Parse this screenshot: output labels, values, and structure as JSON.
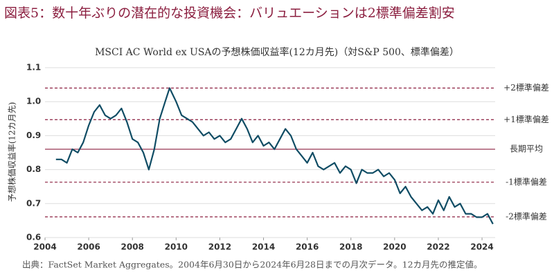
{
  "chart_data": {
    "type": "line",
    "title": "図表5：数十年ぶりの潜在的な投資機会：バリュエーションは2標準偏差割安",
    "subtitle": "MSCI AC World ex USAの予想株価収益率(12カ月先)（対S&P 500、標準偏差）",
    "y_label": "予想株価収益率(12カ月先)",
    "source": "出典：FactSet Market Aggregates。2004年6月30日から2024年6月28日までの月次データ。12カ月先の推定値。",
    "xlim": [
      2004,
      2024.6
    ],
    "xticks": [
      2004,
      2006,
      2008,
      2010,
      2012,
      2014,
      2016,
      2018,
      2020,
      2022,
      2024
    ],
    "ylim": [
      0.6,
      1.1
    ],
    "yticks": [
      0.6,
      0.7,
      0.8,
      0.9,
      {
        "value": 1,
        "label": "1.0"
      },
      1.1
    ],
    "grid": true,
    "reference_lines": [
      {
        "label": "+2標準偏差",
        "value": 1.04,
        "style": "dashed"
      },
      {
        "label": "+1標準偏差",
        "value": 0.947,
        "style": "dashed"
      },
      {
        "label": "長期平均",
        "value": 0.86,
        "style": "solid"
      },
      {
        "label": "-1標準偏差",
        "value": 0.763,
        "style": "dashed"
      },
      {
        "label": "-2標準偏差",
        "value": 0.661,
        "style": "dashed"
      }
    ],
    "reference_color": "#8b1e3f",
    "x": [
      2004.5,
      2004.75,
      2005,
      2005.25,
      2005.5,
      2005.75,
      2006,
      2006.25,
      2006.5,
      2006.75,
      2007,
      2007.25,
      2007.5,
      2007.75,
      2008,
      2008.25,
      2008.5,
      2008.75,
      2009,
      2009.25,
      2009.5,
      2009.7,
      2010,
      2010.25,
      2010.5,
      2010.75,
      2011,
      2011.25,
      2011.5,
      2011.75,
      2012,
      2012.25,
      2012.5,
      2012.75,
      2013,
      2013.25,
      2013.5,
      2013.75,
      2014,
      2014.25,
      2014.5,
      2014.75,
      2015,
      2015.25,
      2015.5,
      2015.75,
      2016,
      2016.25,
      2016.5,
      2016.75,
      2017,
      2017.25,
      2017.5,
      2017.75,
      2018,
      2018.25,
      2018.5,
      2018.75,
      2019,
      2019.25,
      2019.5,
      2019.75,
      2020,
      2020.25,
      2020.5,
      2020.75,
      2021,
      2021.25,
      2021.5,
      2021.75,
      2022,
      2022.25,
      2022.5,
      2022.75,
      2023,
      2023.25,
      2023.5,
      2023.75,
      2024,
      2024.25,
      2024.5
    ],
    "series": [
      {
        "name": "MSCI AC World ex USA",
        "color": "#0f4c64",
        "values": [
          0.83,
          0.83,
          0.82,
          0.86,
          0.85,
          0.88,
          0.93,
          0.97,
          0.99,
          0.96,
          0.95,
          0.96,
          0.98,
          0.94,
          0.89,
          0.88,
          0.85,
          0.8,
          0.86,
          0.95,
          1.0,
          1.04,
          1.0,
          0.96,
          0.95,
          0.94,
          0.92,
          0.9,
          0.91,
          0.89,
          0.9,
          0.88,
          0.89,
          0.92,
          0.95,
          0.92,
          0.88,
          0.9,
          0.87,
          0.88,
          0.86,
          0.89,
          0.92,
          0.9,
          0.86,
          0.84,
          0.82,
          0.85,
          0.81,
          0.8,
          0.81,
          0.82,
          0.79,
          0.81,
          0.8,
          0.76,
          0.8,
          0.79,
          0.79,
          0.8,
          0.78,
          0.79,
          0.77,
          0.73,
          0.75,
          0.72,
          0.7,
          0.68,
          0.69,
          0.67,
          0.71,
          0.68,
          0.72,
          0.69,
          0.7,
          0.67,
          0.67,
          0.66,
          0.66,
          0.67,
          0.64
        ]
      }
    ]
  }
}
